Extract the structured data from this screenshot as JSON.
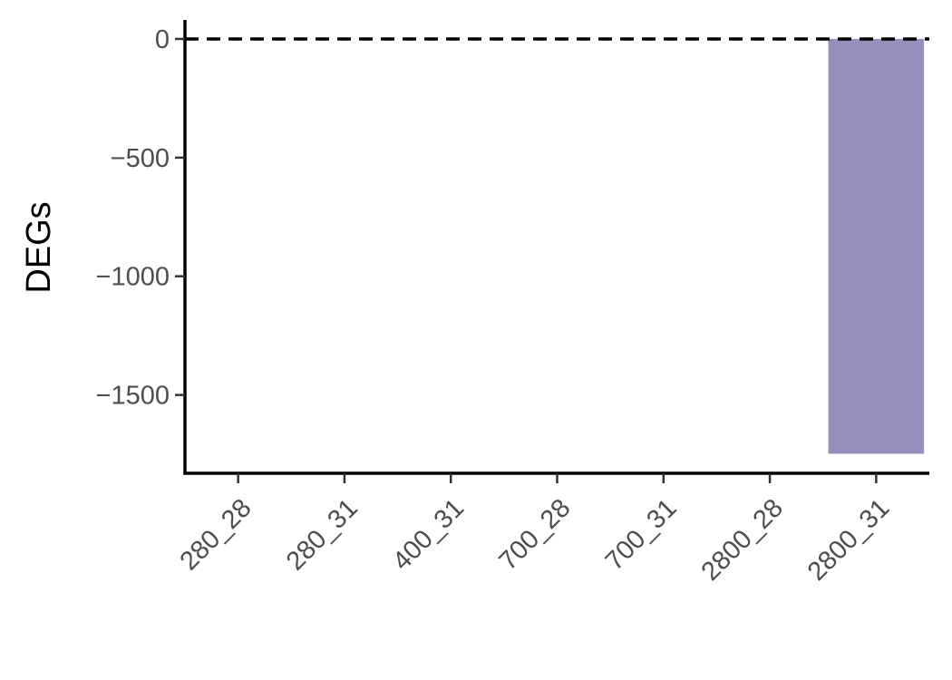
{
  "chart_data": {
    "type": "bar",
    "title": "",
    "xlabel": "",
    "ylabel": "DEGs",
    "categories": [
      "280_28",
      "280_31",
      "400_31",
      "700_28",
      "700_31",
      "2800_28",
      "2800_31"
    ],
    "values": [
      0,
      0,
      0,
      0,
      0,
      0,
      -1748
    ],
    "ylim": [
      -1830,
      80
    ],
    "yticks": [
      0,
      -500,
      -1000,
      -1500
    ],
    "ytick_labels": [
      "0",
      "−500",
      "−1000",
      "−1500"
    ],
    "reference_line": {
      "y": 0,
      "style": "dashed"
    },
    "grid": false,
    "legend": "none",
    "colors": {
      "bar": "#968fbe",
      "axis": "#000000",
      "tick_text": "#4d4d4d"
    }
  }
}
